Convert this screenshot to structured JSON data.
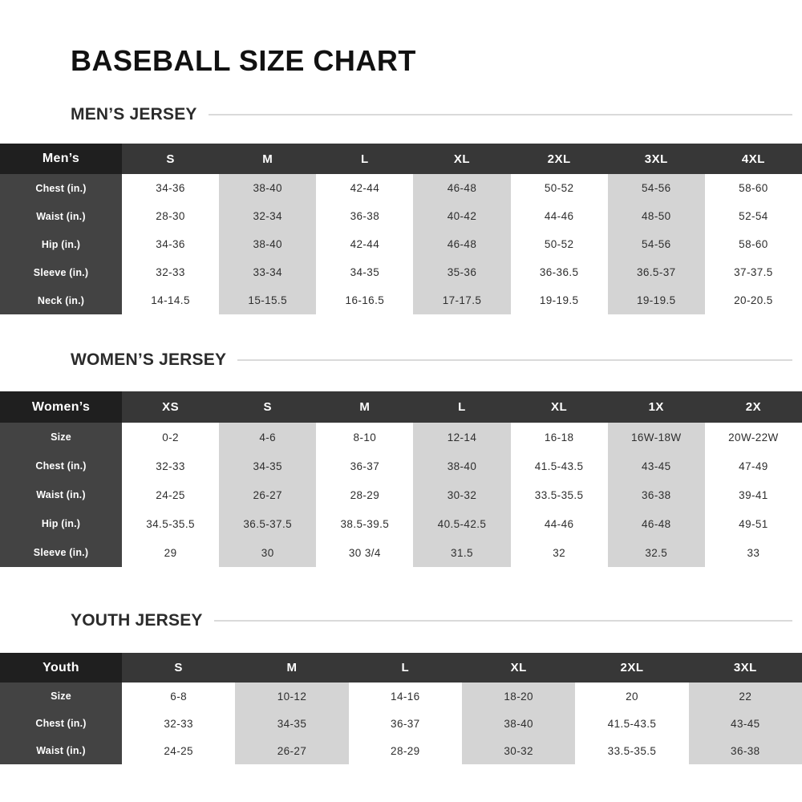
{
  "page": {
    "title": "BASEBALL SIZE CHART"
  },
  "colors": {
    "corner_bg": "#1f1f1f",
    "header_bg": "#373737",
    "label_col_bg": "#434343",
    "shade_bg": "#d4d4d4",
    "body_text": "#2e2e2e",
    "rule_color": "#dadada",
    "title_color": "#111111"
  },
  "tables": [
    {
      "section_title": "MEN’S JERSEY",
      "corner_label": "Men’s",
      "columns": [
        "S",
        "M",
        "L",
        "XL",
        "2XL",
        "3XL",
        "4XL"
      ],
      "rows": [
        {
          "label": "Chest (in.)",
          "values": [
            "34-36",
            "38-40",
            "42-44",
            "46-48",
            "50-52",
            "54-56",
            "58-60"
          ]
        },
        {
          "label": "Waist (in.)",
          "values": [
            "28-30",
            "32-34",
            "36-38",
            "40-42",
            "44-46",
            "48-50",
            "52-54"
          ]
        },
        {
          "label": "Hip (in.)",
          "values": [
            "34-36",
            "38-40",
            "42-44",
            "46-48",
            "50-52",
            "54-56",
            "58-60"
          ]
        },
        {
          "label": "Sleeve (in.)",
          "values": [
            "32-33",
            "33-34",
            "34-35",
            "35-36",
            "36-36.5",
            "36.5-37",
            "37-37.5"
          ]
        },
        {
          "label": "Neck (in.)",
          "values": [
            "14-14.5",
            "15-15.5",
            "16-16.5",
            "17-17.5",
            "19-19.5",
            "19-19.5",
            "20-20.5"
          ]
        }
      ]
    },
    {
      "section_title": "WOMEN’S JERSEY",
      "corner_label": "Women’s",
      "columns": [
        "XS",
        "S",
        "M",
        "L",
        "XL",
        "1X",
        "2X"
      ],
      "rows": [
        {
          "label": "Size",
          "values": [
            "0-2",
            "4-6",
            "8-10",
            "12-14",
            "16-18",
            "16W-18W",
            "20W-22W"
          ]
        },
        {
          "label": "Chest (in.)",
          "values": [
            "32-33",
            "34-35",
            "36-37",
            "38-40",
            "41.5-43.5",
            "43-45",
            "47-49"
          ]
        },
        {
          "label": "Waist (in.)",
          "values": [
            "24-25",
            "26-27",
            "28-29",
            "30-32",
            "33.5-35.5",
            "36-38",
            "39-41"
          ]
        },
        {
          "label": "Hip (in.)",
          "values": [
            "34.5-35.5",
            "36.5-37.5",
            "38.5-39.5",
            "40.5-42.5",
            "44-46",
            "46-48",
            "49-51"
          ]
        },
        {
          "label": "Sleeve (in.)",
          "values": [
            "29",
            "30",
            "30 3/4",
            "31.5",
            "32",
            "32.5",
            "33"
          ]
        }
      ]
    },
    {
      "section_title": "YOUTH JERSEY",
      "corner_label": "Youth",
      "columns": [
        "S",
        "M",
        "L",
        "XL",
        "2XL",
        "3XL"
      ],
      "rows": [
        {
          "label": "Size",
          "values": [
            "6-8",
            "10-12",
            "14-16",
            "18-20",
            "20",
            "22"
          ]
        },
        {
          "label": "Chest (in.)",
          "values": [
            "32-33",
            "34-35",
            "36-37",
            "38-40",
            "41.5-43.5",
            "43-45"
          ]
        },
        {
          "label": "Waist (in.)",
          "values": [
            "24-25",
            "26-27",
            "28-29",
            "30-32",
            "33.5-35.5",
            "36-38"
          ]
        }
      ]
    }
  ]
}
